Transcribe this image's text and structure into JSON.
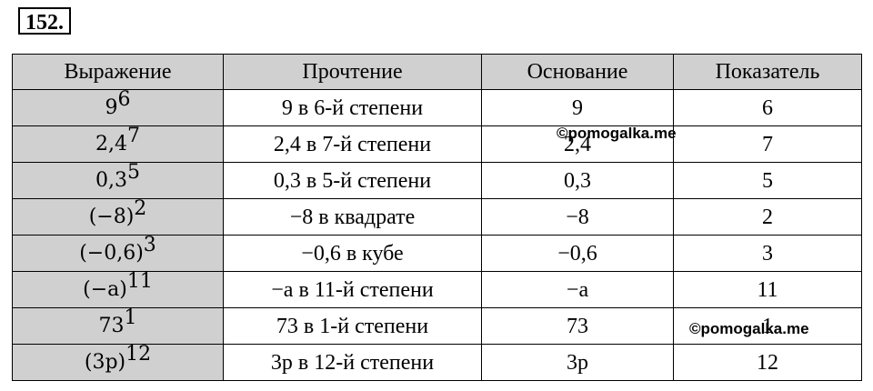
{
  "task_number": "152.",
  "headers": [
    "Выражение",
    "Прочтение",
    "Основание",
    "Показатель"
  ],
  "rows": [
    {
      "base": "9",
      "exp": "6",
      "reading": "9 в 6-й степени",
      "basis": "9",
      "power": "6"
    },
    {
      "base": "2,4",
      "exp": "7",
      "reading": "2,4 в 7-й степени",
      "basis": "2,4",
      "power": "7"
    },
    {
      "base": "0,3",
      "exp": "5",
      "reading": "0,3 в 5-й степени",
      "basis": "0,3",
      "power": "5"
    },
    {
      "base": "(−8)",
      "exp": "2",
      "reading": "−8 в квадрате",
      "basis": "−8",
      "power": "2"
    },
    {
      "base": "(−0,6)",
      "exp": "3",
      "reading": "−0,6 в кубе",
      "basis": "−0,6",
      "power": "3"
    },
    {
      "base": "(−a)",
      "exp": "11",
      "reading": "−a в 11-й степени",
      "basis": "−a",
      "power": "11"
    },
    {
      "base": "73",
      "exp": "1",
      "reading": "73 в 1-й степени",
      "basis": "73",
      "power": "1"
    },
    {
      "base": "(3p)",
      "exp": "12",
      "reading": "3p в 12-й степени",
      "basis": "3p",
      "power": "12"
    }
  ],
  "watermarks": [
    "©pomogalka.me",
    "©pomogalka.me"
  ]
}
